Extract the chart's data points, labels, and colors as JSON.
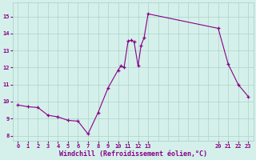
{
  "x": [
    0,
    1,
    2,
    3,
    4,
    5,
    6,
    7,
    8,
    9,
    10,
    10.3,
    10.6,
    11,
    11.3,
    11.6,
    12,
    12.3,
    12.6,
    13,
    20,
    21,
    22,
    23
  ],
  "y": [
    9.8,
    9.7,
    9.65,
    9.2,
    9.1,
    8.9,
    8.85,
    8.1,
    9.35,
    10.8,
    11.85,
    12.1,
    12.0,
    13.55,
    13.6,
    13.5,
    12.1,
    13.3,
    13.75,
    15.15,
    14.3,
    12.2,
    11.0,
    10.3
  ],
  "xlim": [
    -0.5,
    23.5
  ],
  "ylim": [
    7.7,
    15.8
  ],
  "xticks": [
    0,
    1,
    2,
    3,
    4,
    5,
    6,
    7,
    8,
    9,
    10,
    11,
    12,
    13,
    20,
    21,
    22,
    23
  ],
  "yticks": [
    8,
    9,
    10,
    11,
    12,
    13,
    14,
    15
  ],
  "xlabel": "Windchill (Refroidissement éolien,°C)",
  "line_color": "#880088",
  "marker_color": "#880088",
  "bg_color": "#d5f0ea",
  "grid_color": "#aad4cc",
  "xlabel_color": "#880088",
  "tick_color": "#880088",
  "figsize": [
    3.2,
    2.0
  ],
  "dpi": 100
}
